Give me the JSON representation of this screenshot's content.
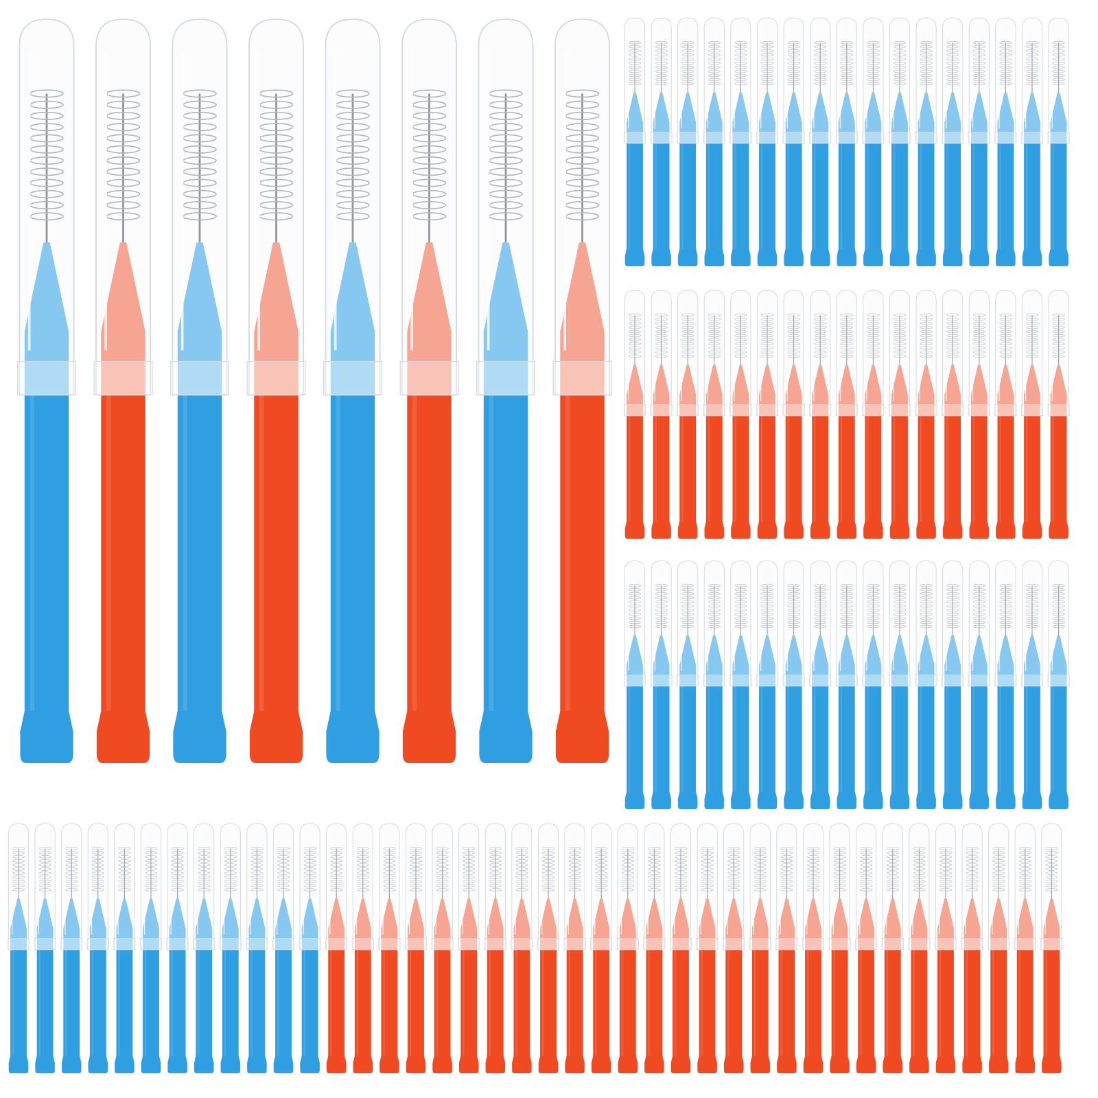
{
  "colors": {
    "background": "#ffffff",
    "blue_handle": "#2f9fe2",
    "blue_handle_light": "#5cb8ee",
    "red_handle": "#f04a22",
    "red_handle_light": "#f7876b",
    "cap_fill": "#f4f6f8",
    "cap_outline": "#d5dade",
    "wire": "#6c6f73",
    "bristle": "#9aa0a6"
  },
  "large_group": {
    "count": 8,
    "color_sequence": [
      "blue",
      "red",
      "blue",
      "red",
      "blue",
      "red",
      "blue",
      "red"
    ]
  },
  "right_rows": [
    {
      "color": "blue",
      "count": 17
    },
    {
      "color": "red",
      "count": 17
    },
    {
      "color": "blue",
      "count": 17
    }
  ],
  "bottom_row": {
    "blue_count": 12,
    "red_count": 28
  }
}
